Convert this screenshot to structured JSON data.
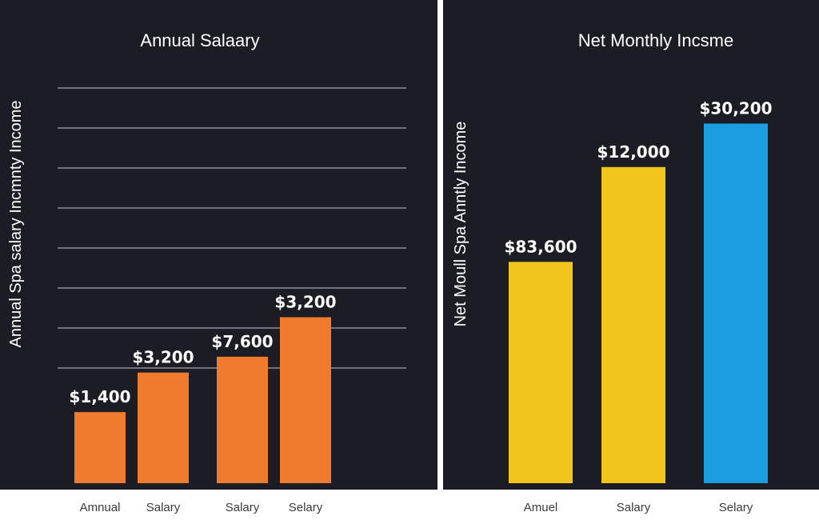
{
  "chart_data": [
    {
      "type": "bar",
      "title": "Annual Salaary",
      "ylabel": "Annual Spa salary Incmnty Income",
      "xlabel": "",
      "grid": true,
      "ylim": [
        0,
        10000
      ],
      "categories": [
        "Amnual",
        "Salary",
        "Salary",
        "Selary"
      ],
      "values": [
        1400,
        3200,
        7600,
        3200
      ],
      "heights": [
        1800,
        2800,
        3200,
        4200
      ],
      "value_labels": [
        "$1,400",
        "$3,200",
        "$7,600",
        "$3,200"
      ],
      "colors": [
        "#f07a2e",
        "#f07a2e",
        "#f07a2e",
        "#f07a2e"
      ]
    },
    {
      "type": "bar",
      "title": "Net Monthly Incsme",
      "ylabel": "Net Moull Spa Anntly Income",
      "xlabel": "",
      "grid": false,
      "ylim": [
        0,
        10000
      ],
      "categories": [
        "Amuel",
        "Salary",
        "Selary"
      ],
      "values": [
        83600,
        12000,
        30200
      ],
      "heights": [
        5600,
        8000,
        9100
      ],
      "value_labels": [
        "$83,600",
        "$12,000",
        "$30,200"
      ],
      "colors": [
        "#f2c51c",
        "#f2c51c",
        "#1a9ee1"
      ]
    }
  ]
}
